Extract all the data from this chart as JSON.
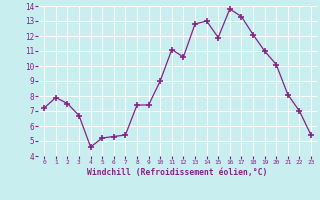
{
  "x": [
    0,
    1,
    2,
    3,
    4,
    5,
    6,
    7,
    8,
    9,
    10,
    11,
    12,
    13,
    14,
    15,
    16,
    17,
    18,
    19,
    20,
    21,
    22,
    23
  ],
  "y": [
    7.2,
    7.9,
    7.5,
    6.7,
    4.6,
    5.2,
    5.3,
    5.4,
    7.4,
    7.4,
    9.0,
    11.1,
    10.6,
    12.8,
    13.0,
    11.9,
    13.8,
    13.3,
    12.1,
    11.0,
    10.1,
    8.1,
    7.0,
    5.4
  ],
  "line_color": "#882288",
  "marker": "+",
  "marker_size": 4,
  "marker_linewidth": 1.2,
  "bg_color": "#c8eef0",
  "grid_color": "#b0d8dc",
  "xlabel": "Windchill (Refroidissement éolien,°C)",
  "xlabel_color": "#882288",
  "tick_color": "#882288",
  "ylim": [
    4,
    14
  ],
  "xlim": [
    -0.5,
    23.5
  ],
  "yticks": [
    4,
    5,
    6,
    7,
    8,
    9,
    10,
    11,
    12,
    13,
    14
  ],
  "xticks": [
    0,
    1,
    2,
    3,
    4,
    5,
    6,
    7,
    8,
    9,
    10,
    11,
    12,
    13,
    14,
    15,
    16,
    17,
    18,
    19,
    20,
    21,
    22,
    23
  ],
  "xtick_labels": [
    "0",
    "1",
    "2",
    "3",
    "4",
    "5",
    "6",
    "7",
    "8",
    "9",
    "10",
    "11",
    "12",
    "13",
    "14",
    "15",
    "16",
    "17",
    "18",
    "19",
    "20",
    "21",
    "22",
    "23"
  ]
}
